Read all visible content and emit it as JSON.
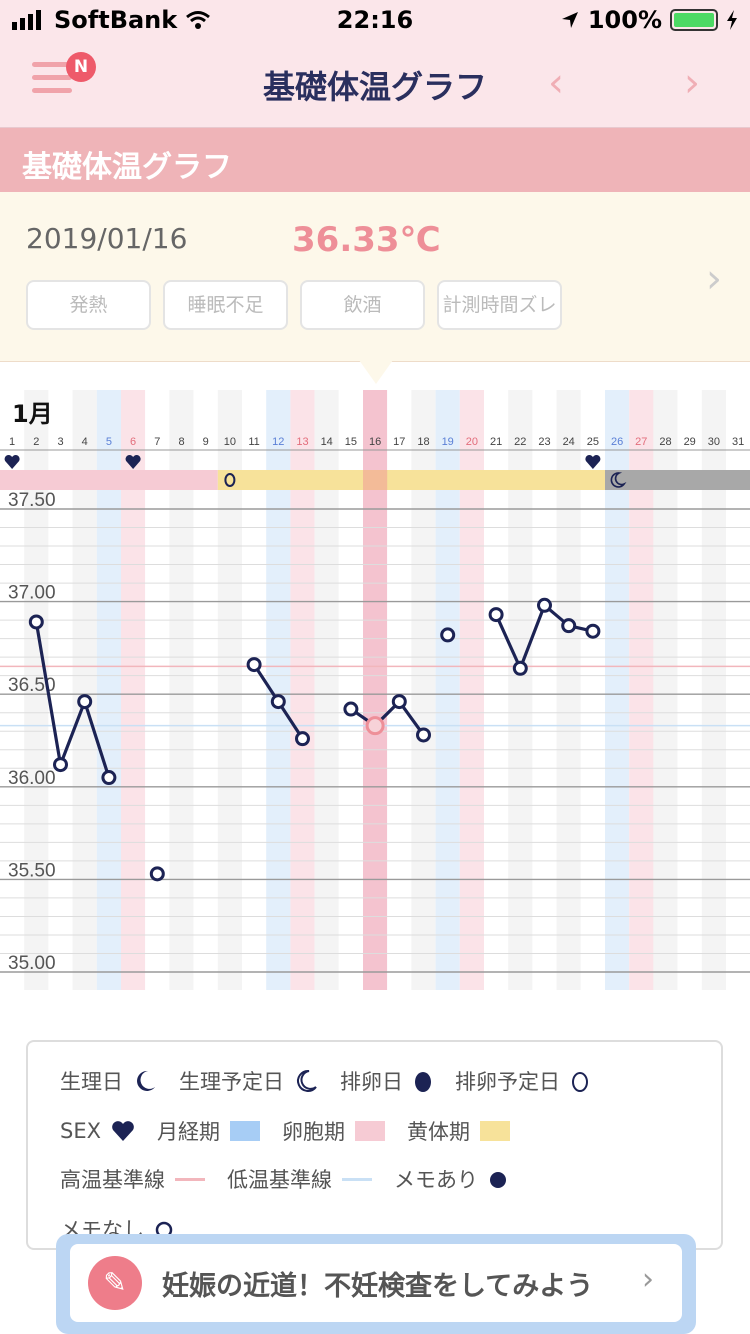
{
  "status": {
    "carrier": "SoftBank",
    "time": "22:16",
    "battery": "100%"
  },
  "nav": {
    "title": "基礎体温グラフ",
    "badge": "N",
    "prev": "‹",
    "next": "›"
  },
  "section": {
    "title": "基礎体温グラフ"
  },
  "info": {
    "date": "2019/01/16",
    "temp": "36.33℃",
    "tags": [
      "発熱",
      "睡眠不足",
      "飲酒",
      "計測時間ズレ"
    ]
  },
  "legend": {
    "period": "生理日",
    "period_forecast": "生理予定日",
    "ovulation": "排卵日",
    "ovulation_forecast": "排卵予定日",
    "sex": "SEX",
    "menstrual": "月経期",
    "follicular": "卵胞期",
    "luteal": "黄体期",
    "high_base": "高温基準線",
    "low_base": "低温基準線",
    "memo_yes": "メモあり",
    "memo_no": "メモなし"
  },
  "banner": {
    "text": "妊娠の近道！不妊検査をしてみよう"
  },
  "colors": {
    "accent": "#ee8f98",
    "navy": "#1c2354",
    "menstrual": "#a7cdf5",
    "follicular": "#f6cbd4",
    "luteal": "#f7e29a"
  },
  "chart_data": {
    "type": "line",
    "month_label": "1月",
    "x": [
      1,
      2,
      3,
      4,
      5,
      6,
      7,
      8,
      9,
      10,
      11,
      12,
      13,
      14,
      15,
      16,
      17,
      18,
      19,
      20,
      21,
      22,
      23,
      24,
      25,
      26,
      27,
      28,
      29,
      30,
      31
    ],
    "tick_labels": [
      "1",
      "2",
      "3",
      "4",
      "5",
      "6",
      "7",
      "8",
      "9",
      "10",
      "11",
      "12",
      "13",
      "14",
      "15",
      "16",
      "17",
      "18",
      "19",
      "20",
      "21",
      "22",
      "23",
      "24",
      "25",
      "26",
      "27",
      "28",
      "29",
      "30",
      "31"
    ],
    "y_ticks": [
      "37.50",
      "37.00",
      "36.50",
      "36.00",
      "35.50",
      "35.00"
    ],
    "ylim": [
      35.0,
      37.5
    ],
    "series": [
      {
        "values": [
          null,
          36.89,
          36.12,
          36.46,
          36.05,
          null,
          35.53,
          null,
          null,
          null,
          36.66,
          36.46,
          36.26,
          null,
          36.42,
          36.33,
          36.46,
          36.28,
          36.82,
          null,
          36.93,
          36.64,
          36.98,
          36.87,
          36.84,
          null,
          null,
          null,
          null,
          null,
          null
        ],
        "segments": [
          [
            2,
            5
          ],
          [
            11,
            13
          ],
          [
            15,
            18
          ],
          [
            21,
            25
          ]
        ]
      }
    ],
    "selected_day": 16,
    "high_baseline": 36.65,
    "low_baseline": 36.33,
    "sex_days": [
      1,
      6,
      25
    ],
    "ovulation_forecast_day": 10,
    "period_forecast_day": 26,
    "phases": [
      {
        "phase": "follicular",
        "from": 1,
        "to": 9
      },
      {
        "phase": "luteal",
        "from": 10,
        "to": 25
      },
      {
        "phase": "menstrual-forecast",
        "from": 26,
        "to": 31
      }
    ],
    "blue_columns": [
      5,
      12,
      19,
      26
    ],
    "pink_columns": [
      6,
      13,
      16,
      20,
      27
    ]
  }
}
